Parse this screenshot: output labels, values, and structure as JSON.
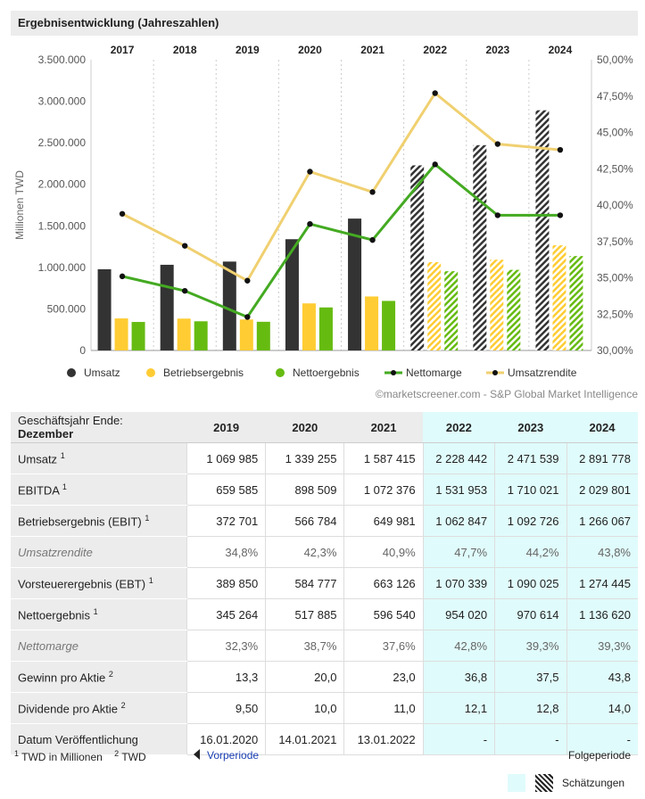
{
  "title": "Ergebnisentwicklung (Jahreszahlen)",
  "source": "©marketscreener.com - S&P Global Market Intelligence",
  "chart_data": {
    "type": "bar",
    "categories": [
      "2017",
      "2018",
      "2019",
      "2020",
      "2021",
      "2022",
      "2023",
      "2024"
    ],
    "estimate_from_index": 5,
    "ylabel": "Millionen TWD",
    "ylim": [
      0,
      3500000
    ],
    "y_ticks": [
      "0",
      "500.000",
      "1.000.000",
      "1.500.000",
      "2.000.000",
      "2.500.000",
      "3.000.000",
      "3.500.000"
    ],
    "y2lim": [
      30,
      50
    ],
    "y2_ticks": [
      "30,00%",
      "32,50%",
      "35,00%",
      "37,50%",
      "40,00%",
      "42,50%",
      "45,00%",
      "47,50%",
      "50,00%"
    ],
    "series": [
      {
        "name": "Umsatz",
        "kind": "bar",
        "axis": "left",
        "color": "#333333",
        "values": [
          977447,
          1031474,
          1069985,
          1339255,
          1587415,
          2228442,
          2471539,
          2891778
        ]
      },
      {
        "name": "Betriebsergebnis",
        "kind": "bar",
        "axis": "left",
        "color": "#ffcc33",
        "values": [
          385559,
          383623,
          372701,
          566784,
          649981,
          1062847,
          1092726,
          1266067
        ]
      },
      {
        "name": "Nettoergebnis",
        "kind": "bar",
        "axis": "left",
        "color": "#66bb11",
        "values": [
          343111,
          351130,
          345264,
          517885,
          596540,
          954020,
          970614,
          1136620
        ]
      },
      {
        "name": "Nettomarge",
        "kind": "line",
        "axis": "right",
        "color": "#44aa22",
        "values": [
          35.1,
          34.1,
          32.3,
          38.7,
          37.6,
          42.8,
          39.3,
          39.3
        ]
      },
      {
        "name": "Umsatzrendite",
        "kind": "line",
        "axis": "right",
        "color": "#f0d070",
        "values": [
          39.4,
          37.2,
          34.8,
          42.3,
          40.9,
          47.7,
          44.2,
          43.8
        ]
      }
    ],
    "legend_position": "bottom",
    "grid": true
  },
  "table": {
    "header_label": "Geschäftsjahr Ende: ",
    "header_month": "Dezember",
    "years": [
      "2019",
      "2020",
      "2021",
      "2022",
      "2023",
      "2024"
    ],
    "estimate_from": 3,
    "rows": [
      {
        "label": "Umsatz",
        "sup": "1",
        "italic": false,
        "values": [
          "1 069 985",
          "1 339 255",
          "1 587 415",
          "2 228 442",
          "2 471 539",
          "2 891 778"
        ]
      },
      {
        "label": "EBITDA",
        "sup": "1",
        "italic": false,
        "values": [
          "659 585",
          "898 509",
          "1 072 376",
          "1 531 953",
          "1 710 021",
          "2 029 801"
        ]
      },
      {
        "label": "Betriebsergebnis (EBIT)",
        "sup": "1",
        "italic": false,
        "values": [
          "372 701",
          "566 784",
          "649 981",
          "1 062 847",
          "1 092 726",
          "1 266 067"
        ]
      },
      {
        "label": "Umsatzrendite",
        "sup": "",
        "italic": true,
        "values": [
          "34,8%",
          "42,3%",
          "40,9%",
          "47,7%",
          "44,2%",
          "43,8%"
        ]
      },
      {
        "label": "Vorsteuerergebnis (EBT)",
        "sup": "1",
        "italic": false,
        "values": [
          "389 850",
          "584 777",
          "663 126",
          "1 070 339",
          "1 090 025",
          "1 274 445"
        ]
      },
      {
        "label": "Nettoergebnis",
        "sup": "1",
        "italic": false,
        "values": [
          "345 264",
          "517 885",
          "596 540",
          "954 020",
          "970 614",
          "1 136 620"
        ]
      },
      {
        "label": "Nettomarge",
        "sup": "",
        "italic": true,
        "values": [
          "32,3%",
          "38,7%",
          "37,6%",
          "42,8%",
          "39,3%",
          "39,3%"
        ]
      },
      {
        "label": "Gewinn pro Aktie",
        "sup": "2",
        "italic": false,
        "values": [
          "13,3",
          "20,0",
          "23,0",
          "36,8",
          "37,5",
          "43,8"
        ]
      },
      {
        "label": "Dividende pro Aktie",
        "sup": "2",
        "italic": false,
        "values": [
          "9,50",
          "10,0",
          "11,0",
          "12,1",
          "12,8",
          "14,0"
        ]
      },
      {
        "label": "Datum Veröffentlichung",
        "sup": "",
        "italic": false,
        "values": [
          "16.01.2020",
          "14.01.2021",
          "13.01.2022",
          "-",
          "-",
          "-"
        ]
      }
    ]
  },
  "footer": {
    "note1_sup": "1",
    "note1": "TWD in Millionen",
    "note2_sup": "2",
    "note2": "TWD",
    "prev": "Vorperiode",
    "next": "Folgeperiode",
    "estimates": "Schätzungen"
  }
}
